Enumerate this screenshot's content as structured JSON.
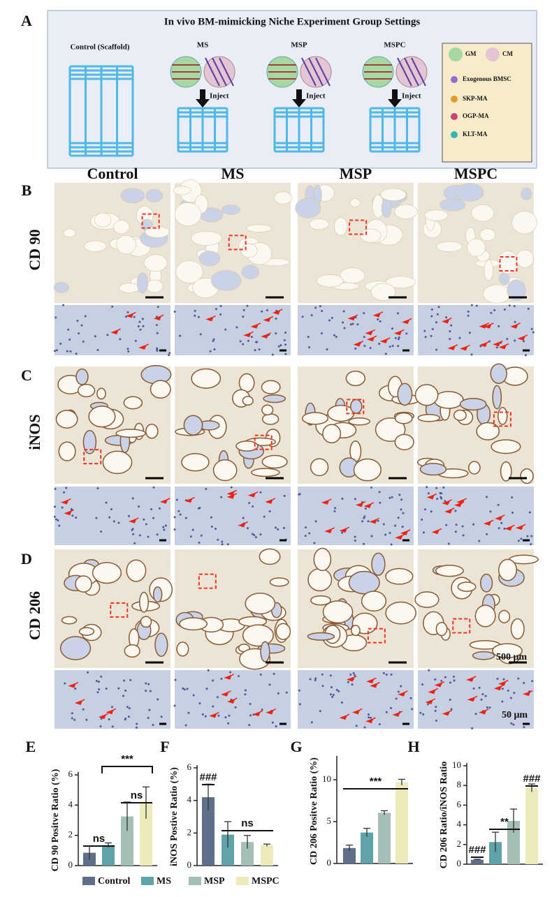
{
  "panel_labels": [
    "A",
    "B",
    "C",
    "D",
    "E",
    "F",
    "G",
    "H"
  ],
  "panel_a": {
    "title": "In vivo BM-mimicking Niche Experiment Group Settings",
    "groups": [
      "Control (Scaffold)",
      "MS",
      "MSP",
      "MSPC"
    ],
    "action": "Inject",
    "legend": [
      "GM",
      "CM",
      "Exogenous BMSC",
      "SKP-MA",
      "OGP-MA",
      "KLT-MA"
    ]
  },
  "column_headers": [
    "Control",
    "MS",
    "MSP",
    "MSPC"
  ],
  "row_labels": [
    "CD 90",
    "iNOS",
    "CD 206"
  ],
  "scale_bars": [
    "500 μm",
    "50 μm"
  ],
  "legend": [
    {
      "name": "Control",
      "color": "#5f6f8a"
    },
    {
      "name": "MS",
      "color": "#5fa3a8"
    },
    {
      "name": "MSP",
      "color": "#a6bfb4"
    },
    {
      "name": "MSPC",
      "color": "#eeebbb"
    }
  ],
  "chart_data": [
    {
      "type": "bar",
      "ylabel": "CD 90 Positve Ratio (%)",
      "values": [
        0.85,
        1.35,
        3.25,
        4.15
      ],
      "errors": [
        0.45,
        0.15,
        0.95,
        1.05
      ],
      "ylim": [
        0,
        6
      ],
      "yticks": [
        0,
        2,
        4,
        6
      ],
      "annotations": [
        "ns",
        "***",
        "ns"
      ]
    },
    {
      "type": "bar",
      "ylabel": "iNOS Postive Ratio (%)",
      "values": [
        4.2,
        1.9,
        1.45,
        1.25
      ],
      "errors": [
        0.8,
        0.8,
        0.4,
        0.07
      ],
      "ylim": [
        0,
        6
      ],
      "yticks": [
        0,
        2,
        4,
        6
      ],
      "annotations": [
        "###",
        "ns"
      ]
    },
    {
      "type": "bar",
      "ylabel": "CD 206 Positve Ratio (%)",
      "values": [
        1.85,
        3.7,
        6.05,
        9.7
      ],
      "errors": [
        0.35,
        0.5,
        0.25,
        0.35
      ],
      "ylim": [
        0,
        12.5
      ],
      "yticks": [
        0,
        5,
        10
      ],
      "annotations": [
        "***"
      ]
    },
    {
      "type": "bar",
      "ylabel": "CD 206 Ratio/iNOS Ratio",
      "values": [
        0.45,
        2.25,
        4.4,
        7.75
      ],
      "errors": [
        0.05,
        1.0,
        1.2,
        0.4
      ],
      "ylim": [
        0,
        10
      ],
      "yticks": [
        0,
        2,
        4,
        6,
        8,
        10
      ],
      "annotations": [
        "###",
        "**",
        "###"
      ]
    }
  ]
}
